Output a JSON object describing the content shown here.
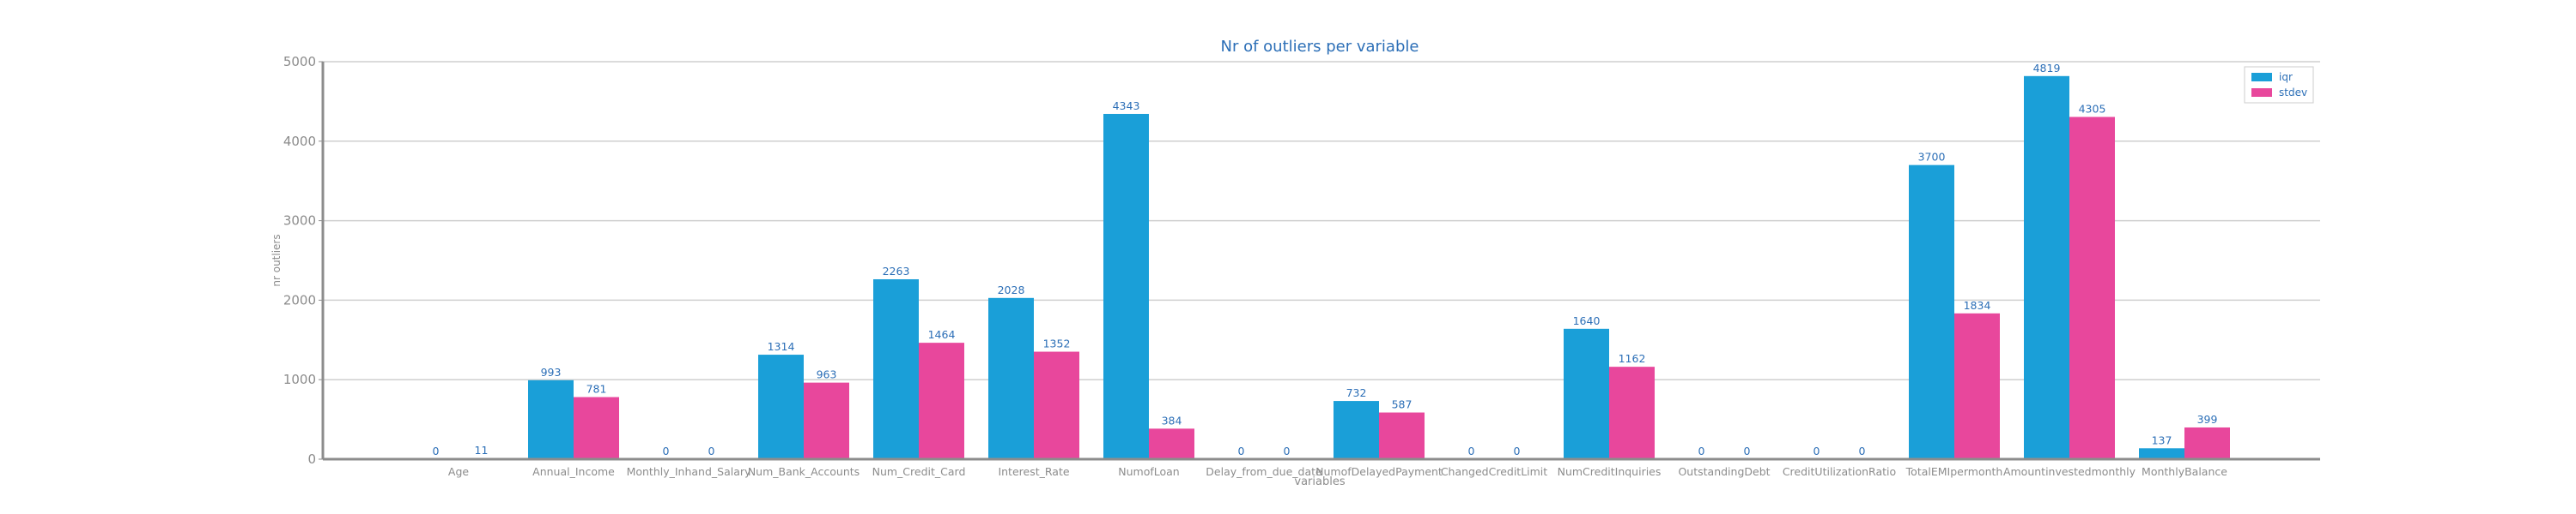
{
  "chart_data": {
    "type": "bar",
    "title": "Nr of outliers per variable",
    "xlabel": "variables",
    "ylabel": "nr outliers",
    "ylim": [
      0,
      5000
    ],
    "yticks": [
      0,
      1000,
      2000,
      3000,
      4000,
      5000
    ],
    "grid": "horizontal",
    "legend_position": "top-right",
    "categories": [
      "Age",
      "Annual_Income",
      "Monthly_Inhand_Salary",
      "Num_Bank_Accounts",
      "Num_Credit_Card",
      "Interest_Rate",
      "NumofLoan",
      "Delay_from_due_date",
      "NumofDelayedPayment",
      "ChangedCreditLimit",
      "NumCreditInquiries",
      "OutstandingDebt",
      "CreditUtilizationRatio",
      "TotalEMIpermonth",
      "Amountinvestedmonthly",
      "MonthlyBalance"
    ],
    "series": [
      {
        "name": "iqr",
        "color": "#1a9fd8",
        "values": [
          0,
          993,
          0,
          1314,
          2263,
          2028,
          4343,
          0,
          732,
          0,
          1640,
          0,
          0,
          3700,
          4819,
          137
        ]
      },
      {
        "name": "stdev",
        "color": "#e8479c",
        "values": [
          11,
          781,
          0,
          963,
          1464,
          1352,
          384,
          0,
          587,
          0,
          1162,
          0,
          0,
          1834,
          4305,
          399
        ]
      }
    ]
  }
}
